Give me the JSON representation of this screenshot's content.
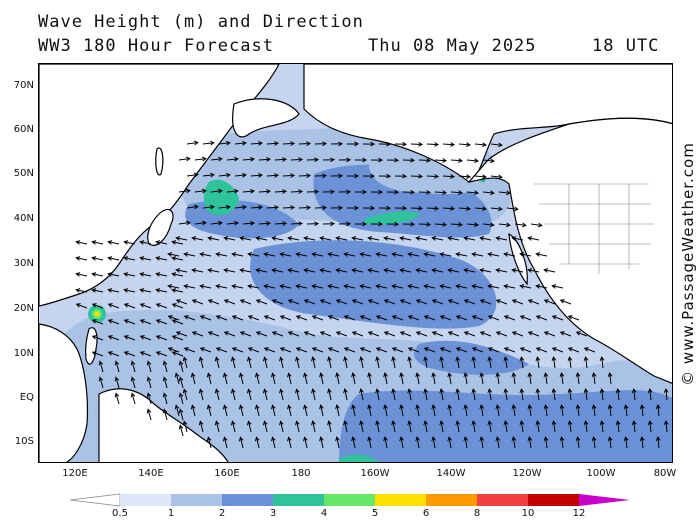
{
  "header": {
    "title_line1": "Wave Height (m) and Direction",
    "title_line2": "WW3 180 Hour Forecast",
    "date": "Thu 08 May 2025",
    "utc": "18 UTC"
  },
  "credit": "© www.PassageWeather.com",
  "axes": {
    "lat_labels": [
      "70N",
      "60N",
      "50N",
      "40N",
      "30N",
      "20N",
      "10N",
      "EQ",
      "10S"
    ],
    "lon_labels": [
      "120E",
      "140E",
      "160E",
      "180",
      "160W",
      "140W",
      "120W",
      "100W",
      "80W"
    ]
  },
  "legend": {
    "labels": [
      "0.5",
      "1",
      "2",
      "3",
      "4",
      "5",
      "6",
      "8",
      "10",
      "12"
    ],
    "colors": [
      "#dde6f6",
      "#a9c2e6",
      "#6b92d6",
      "#2ec39a",
      "#66e866",
      "#ffe000",
      "#ff9a00",
      "#f04040",
      "#c40000",
      "#cc00cc"
    ]
  },
  "map_colors": {
    "ocean_low": "#c6d5ef",
    "ocean_mid": "#a9c2e6",
    "ocean_high": "#6b92d6",
    "green": "#2ec39a",
    "land": "#ffffff",
    "coast": "#000000",
    "arrow": "#000000"
  }
}
